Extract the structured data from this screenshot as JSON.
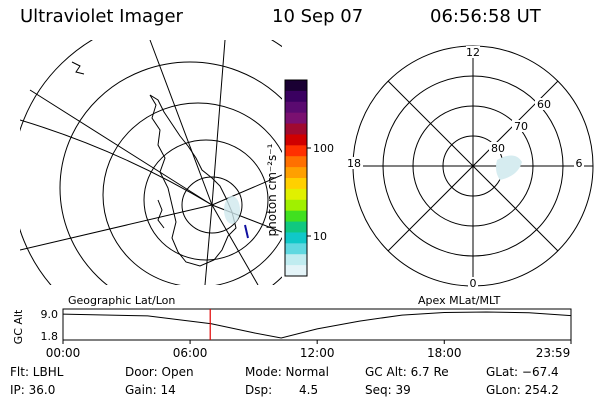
{
  "header": {
    "title": "Ultraviolet Imager",
    "date": "10 Sep 07",
    "time": "06:56:58 UT"
  },
  "colorbar": {
    "label": "photon cm⁻²s⁻¹",
    "ticks": [
      "100",
      "10"
    ],
    "colors": [
      "#1a0033",
      "#3a0060",
      "#5a0a70",
      "#7a1070",
      "#a00a30",
      "#d00000",
      "#ff3000",
      "#ff7000",
      "#ffa000",
      "#ffd000",
      "#e0f000",
      "#a0f000",
      "#40e020",
      "#10c880",
      "#10c8c8",
      "#60d8e0",
      "#c0ecf0",
      "#e4f4f8"
    ]
  },
  "polar": {
    "hour_labels": {
      "top": "12",
      "bottom": "0",
      "left": "18",
      "right": "6"
    },
    "lat_labels": [
      "60",
      "70",
      "80"
    ]
  },
  "altitude_plot": {
    "ylabel": "GC Alt",
    "ytick_top": "9.0",
    "ytick_bottom": "1.8",
    "left_title": "Geographic Lat/Lon",
    "right_title": "Apex MLat/MLT",
    "xticks": [
      "00:00",
      "06:00",
      "12:00",
      "18:00",
      "23:59"
    ],
    "current_time_hours": 6.95
  },
  "info": {
    "flt": "Flt: LBHL",
    "ip": "IP: 36.0",
    "door": "Door: Open",
    "gain": "Gain: 14",
    "mode": "Mode: Normal",
    "dsp_label": "Dsp:",
    "dsp_value": "4.5",
    "gcalt": "GC Alt: 6.7 Re",
    "seq": "Seq: 39",
    "glat": "GLat: −67.4",
    "glon": "GLon: 254.2"
  }
}
